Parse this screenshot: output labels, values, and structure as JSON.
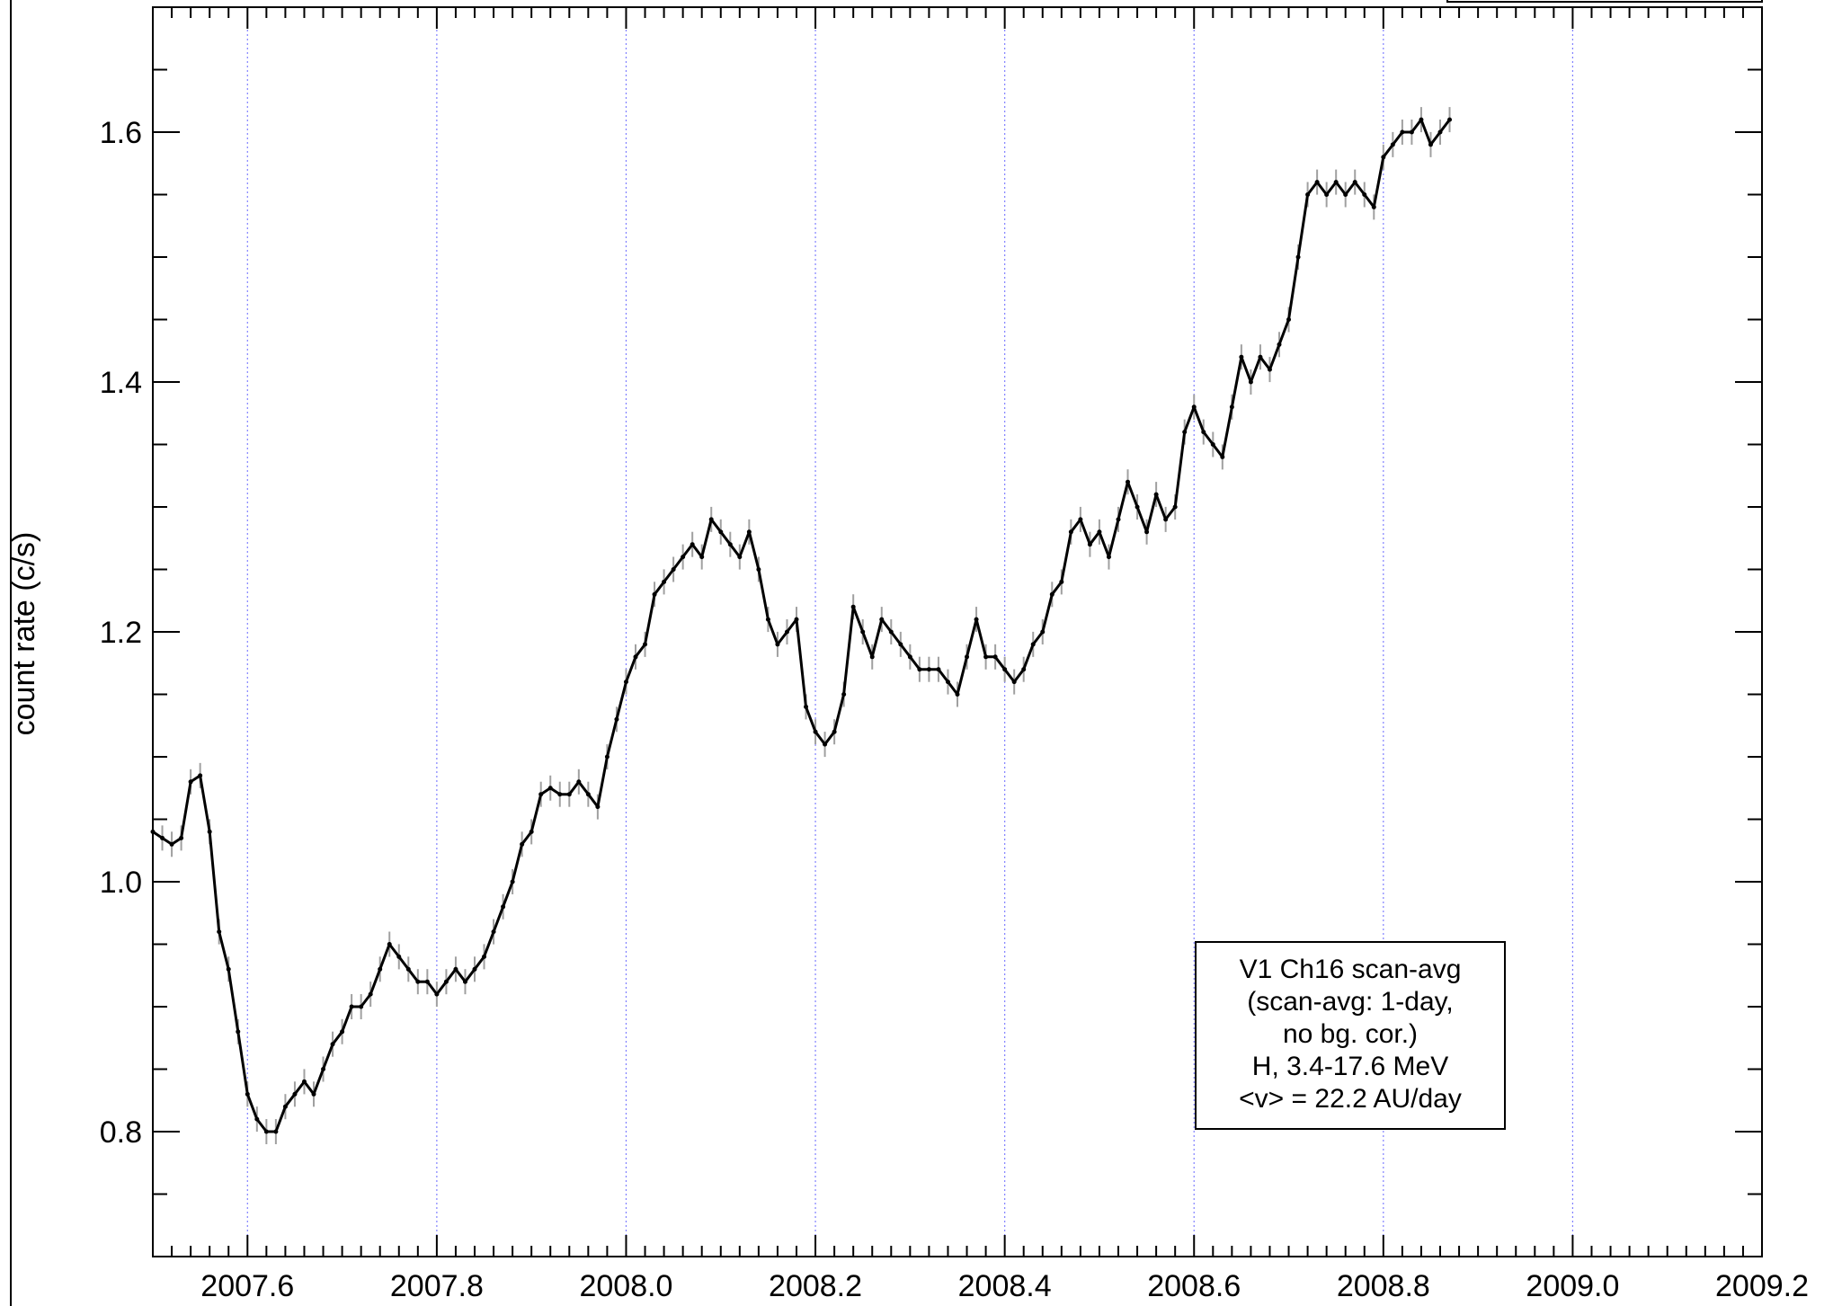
{
  "chart_data": {
    "type": "line",
    "title": "",
    "xlabel": "",
    "ylabel": "count rate (c/s)",
    "xlim": [
      2007.5,
      2009.2
    ],
    "ylim": [
      0.7,
      1.7
    ],
    "x_ticks": [
      "2007.6",
      "2007.8",
      "2008.0",
      "2008.2",
      "2008.4",
      "2008.6",
      "2008.8",
      "2009.0",
      "2009.2"
    ],
    "y_ticks": [
      "0.8",
      "1.0",
      "1.2",
      "1.4",
      "1.6"
    ],
    "grid": "vertical dotted at major x ticks",
    "legend_position": "lower-right",
    "legend_lines": [
      "V1 Ch16 scan-avg",
      "(scan-avg: 1-day,",
      "no bg. cor.)",
      "H, 3.4-17.6 MeV",
      "<v> = 22.2 AU/day"
    ],
    "colors": {
      "line": "#000000",
      "errorbar": "#a0a0a0",
      "grid": "#8080ff"
    },
    "series": [
      {
        "x": [
          2007.5,
          2007.51,
          2007.52,
          2007.53,
          2007.54,
          2007.55,
          2007.56,
          2007.57,
          2007.58,
          2007.59,
          2007.6,
          2007.61,
          2007.62,
          2007.63,
          2007.64,
          2007.65,
          2007.66,
          2007.67,
          2007.68,
          2007.69,
          2007.7,
          2007.71,
          2007.72,
          2007.73,
          2007.74,
          2007.75,
          2007.76,
          2007.77,
          2007.78,
          2007.79,
          2007.8,
          2007.81,
          2007.82,
          2007.83,
          2007.84,
          2007.85,
          2007.86,
          2007.87,
          2007.88,
          2007.89,
          2007.9,
          2007.91,
          2007.92,
          2007.93,
          2007.94,
          2007.95,
          2007.96,
          2007.97,
          2007.98,
          2007.99,
          2008.0,
          2008.01,
          2008.02,
          2008.03,
          2008.04,
          2008.05,
          2008.06,
          2008.07,
          2008.08,
          2008.09,
          2008.1,
          2008.11,
          2008.12,
          2008.13,
          2008.14,
          2008.15,
          2008.16,
          2008.17,
          2008.18,
          2008.19,
          2008.2,
          2008.21,
          2008.22,
          2008.23,
          2008.24,
          2008.25,
          2008.26,
          2008.27,
          2008.28,
          2008.29,
          2008.3,
          2008.31,
          2008.32,
          2008.33,
          2008.34,
          2008.35,
          2008.36,
          2008.37,
          2008.38,
          2008.39,
          2008.4,
          2008.41,
          2008.42,
          2008.43,
          2008.44,
          2008.45,
          2008.46,
          2008.47,
          2008.48,
          2008.49,
          2008.5,
          2008.51,
          2008.52,
          2008.53,
          2008.54,
          2008.55,
          2008.56,
          2008.57,
          2008.58,
          2008.59,
          2008.6,
          2008.61,
          2008.62,
          2008.63,
          2008.64,
          2008.65,
          2008.66,
          2008.67,
          2008.68,
          2008.69,
          2008.7,
          2008.71,
          2008.72,
          2008.73,
          2008.74,
          2008.75,
          2008.76,
          2008.77,
          2008.78,
          2008.79,
          2008.8,
          2008.81,
          2008.82,
          2008.83,
          2008.84,
          2008.85,
          2008.86,
          2008.87
        ],
        "y": [
          1.04,
          1.035,
          1.03,
          1.035,
          1.08,
          1.085,
          1.04,
          0.96,
          0.93,
          0.88,
          0.83,
          0.81,
          0.8,
          0.8,
          0.82,
          0.83,
          0.84,
          0.83,
          0.85,
          0.87,
          0.88,
          0.9,
          0.9,
          0.91,
          0.93,
          0.95,
          0.94,
          0.93,
          0.92,
          0.92,
          0.91,
          0.92,
          0.93,
          0.92,
          0.93,
          0.94,
          0.96,
          0.98,
          1.0,
          1.03,
          1.04,
          1.07,
          1.075,
          1.07,
          1.07,
          1.08,
          1.07,
          1.06,
          1.1,
          1.13,
          1.16,
          1.18,
          1.19,
          1.23,
          1.24,
          1.25,
          1.26,
          1.27,
          1.26,
          1.29,
          1.28,
          1.27,
          1.26,
          1.28,
          1.25,
          1.21,
          1.19,
          1.2,
          1.21,
          1.14,
          1.12,
          1.11,
          1.12,
          1.15,
          1.22,
          1.2,
          1.18,
          1.21,
          1.2,
          1.19,
          1.18,
          1.17,
          1.17,
          1.17,
          1.16,
          1.15,
          1.18,
          1.21,
          1.18,
          1.18,
          1.17,
          1.16,
          1.17,
          1.19,
          1.2,
          1.23,
          1.24,
          1.28,
          1.29,
          1.27,
          1.28,
          1.26,
          1.29,
          1.32,
          1.3,
          1.28,
          1.31,
          1.29,
          1.3,
          1.36,
          1.38,
          1.36,
          1.35,
          1.34,
          1.38,
          1.42,
          1.4,
          1.42,
          1.41,
          1.43,
          1.45,
          1.5,
          1.55,
          1.56,
          1.55,
          1.56,
          1.55,
          1.56,
          1.55,
          1.54,
          1.58,
          1.59,
          1.6,
          1.6,
          1.61,
          1.59,
          1.6,
          1.61
        ]
      }
    ]
  }
}
